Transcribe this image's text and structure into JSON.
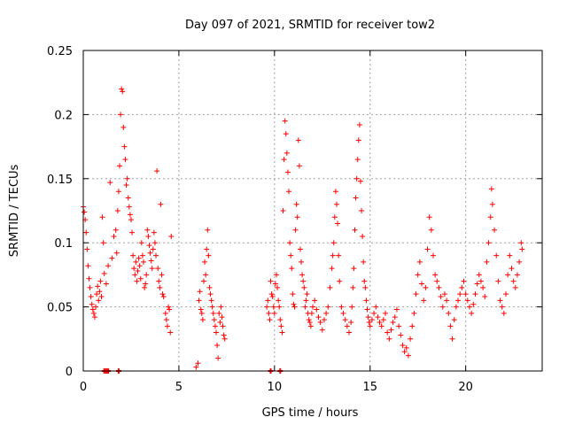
{
  "chart_data": {
    "type": "scatter",
    "title": "Day 097 of 2021, SRMTID for receiver tow2",
    "xlabel": "GPS time / hours",
    "ylabel": "SRMTID / TECUs",
    "xlim": [
      0,
      24
    ],
    "ylim": [
      0,
      0.25
    ],
    "xticks": [
      0,
      5,
      10,
      15,
      20
    ],
    "xtick_labels": [
      "0",
      "5",
      "10",
      "15",
      "20"
    ],
    "yticks": [
      0,
      0.05,
      0.1,
      0.15,
      0.2,
      0.25
    ],
    "ytick_labels": [
      "0",
      "0.05",
      "0.1",
      "0.15",
      "0.2",
      "0.25"
    ],
    "grid": true,
    "marker": "+",
    "series": [
      {
        "name": "SRMTID",
        "color": "#ff0000",
        "points": [
          [
            0.0,
            0.128
          ],
          [
            0.05,
            0.124
          ],
          [
            0.1,
            0.118
          ],
          [
            0.15,
            0.108
          ],
          [
            0.2,
            0.095
          ],
          [
            0.25,
            0.082
          ],
          [
            0.3,
            0.072
          ],
          [
            0.35,
            0.065
          ],
          [
            0.4,
            0.058
          ],
          [
            0.45,
            0.052
          ],
          [
            0.5,
            0.048
          ],
          [
            0.55,
            0.045
          ],
          [
            0.6,
            0.042
          ],
          [
            0.65,
            0.05
          ],
          [
            0.7,
            0.06
          ],
          [
            0.75,
            0.066
          ],
          [
            0.8,
            0.055
          ],
          [
            0.85,
            0.062
          ],
          [
            0.9,
            0.07
          ],
          [
            0.95,
            0.058
          ],
          [
            1.0,
            0.12
          ],
          [
            1.05,
            0.1
          ],
          [
            1.1,
            0.076
          ],
          [
            1.2,
            0.068
          ],
          [
            1.3,
            0.082
          ],
          [
            1.4,
            0.147
          ],
          [
            1.5,
            0.088
          ],
          [
            1.6,
            0.105
          ],
          [
            1.7,
            0.11
          ],
          [
            1.75,
            0.092
          ],
          [
            1.8,
            0.125
          ],
          [
            1.85,
            0.14
          ],
          [
            1.9,
            0.16
          ],
          [
            1.95,
            0.2
          ],
          [
            2.0,
            0.22
          ],
          [
            2.05,
            0.218
          ],
          [
            2.1,
            0.19
          ],
          [
            2.15,
            0.175
          ],
          [
            2.2,
            0.165
          ],
          [
            2.25,
            0.145
          ],
          [
            2.3,
            0.15
          ],
          [
            2.35,
            0.135
          ],
          [
            2.4,
            0.128
          ],
          [
            2.45,
            0.122
          ],
          [
            2.5,
            0.118
          ],
          [
            2.55,
            0.108
          ],
          [
            2.6,
            0.09
          ],
          [
            2.65,
            0.08
          ],
          [
            2.7,
            0.075
          ],
          [
            2.75,
            0.085
          ],
          [
            2.8,
            0.07
          ],
          [
            2.85,
            0.078
          ],
          [
            2.9,
            0.088
          ],
          [
            2.95,
            0.082
          ],
          [
            3.0,
            0.072
          ],
          [
            3.05,
            0.1
          ],
          [
            3.1,
            0.09
          ],
          [
            3.15,
            0.085
          ],
          [
            3.2,
            0.065
          ],
          [
            3.25,
            0.068
          ],
          [
            3.3,
            0.075
          ],
          [
            3.35,
            0.11
          ],
          [
            3.4,
            0.105
          ],
          [
            3.45,
            0.098
          ],
          [
            3.5,
            0.092
          ],
          [
            3.55,
            0.086
          ],
          [
            3.6,
            0.08
          ],
          [
            3.65,
            0.095
          ],
          [
            3.7,
            0.108
          ],
          [
            3.75,
            0.1
          ],
          [
            3.8,
            0.09
          ],
          [
            3.85,
            0.156
          ],
          [
            3.9,
            0.08
          ],
          [
            3.95,
            0.07
          ],
          [
            4.0,
            0.065
          ],
          [
            4.05,
            0.13
          ],
          [
            4.1,
            0.075
          ],
          [
            4.15,
            0.06
          ],
          [
            4.2,
            0.058
          ],
          [
            4.3,
            0.045
          ],
          [
            4.35,
            0.04
          ],
          [
            4.4,
            0.035
          ],
          [
            4.45,
            0.05
          ],
          [
            4.5,
            0.048
          ],
          [
            4.55,
            0.03
          ],
          [
            4.6,
            0.105
          ],
          [
            5.9,
            0.003
          ],
          [
            6.0,
            0.006
          ],
          [
            6.05,
            0.055
          ],
          [
            6.1,
            0.062
          ],
          [
            6.15,
            0.048
          ],
          [
            6.2,
            0.045
          ],
          [
            6.25,
            0.04
          ],
          [
            6.3,
            0.07
          ],
          [
            6.35,
            0.085
          ],
          [
            6.4,
            0.075
          ],
          [
            6.45,
            0.095
          ],
          [
            6.5,
            0.11
          ],
          [
            6.55,
            0.09
          ],
          [
            6.6,
            0.065
          ],
          [
            6.65,
            0.06
          ],
          [
            6.7,
            0.055
          ],
          [
            6.75,
            0.05
          ],
          [
            6.8,
            0.045
          ],
          [
            6.85,
            0.04
          ],
          [
            6.9,
            0.035
          ],
          [
            6.95,
            0.03
          ],
          [
            7.0,
            0.02
          ],
          [
            7.05,
            0.01
          ],
          [
            7.1,
            0.045
          ],
          [
            7.15,
            0.038
          ],
          [
            7.2,
            0.05
          ],
          [
            7.25,
            0.042
          ],
          [
            7.3,
            0.035
          ],
          [
            7.35,
            0.028
          ],
          [
            7.4,
            0.025
          ],
          [
            9.6,
            0.05
          ],
          [
            9.65,
            0.055
          ],
          [
            9.7,
            0.045
          ],
          [
            9.75,
            0.04
          ],
          [
            9.8,
            0.07
          ],
          [
            9.85,
            0.06
          ],
          [
            9.9,
            0.058
          ],
          [
            9.95,
            0.05
          ],
          [
            10.0,
            0.045
          ],
          [
            10.05,
            0.068
          ],
          [
            10.1,
            0.075
          ],
          [
            10.15,
            0.065
          ],
          [
            10.2,
            0.055
          ],
          [
            10.25,
            0.05
          ],
          [
            10.3,
            0.04
          ],
          [
            10.35,
            0.035
          ],
          [
            10.4,
            0.03
          ],
          [
            10.45,
            0.125
          ],
          [
            10.5,
            0.165
          ],
          [
            10.55,
            0.195
          ],
          [
            10.6,
            0.185
          ],
          [
            10.65,
            0.17
          ],
          [
            10.7,
            0.155
          ],
          [
            10.75,
            0.14
          ],
          [
            10.8,
            0.1
          ],
          [
            10.85,
            0.09
          ],
          [
            10.9,
            0.08
          ],
          [
            10.95,
            0.06
          ],
          [
            11.0,
            0.052
          ],
          [
            11.05,
            0.05
          ],
          [
            11.1,
            0.11
          ],
          [
            11.15,
            0.13
          ],
          [
            11.2,
            0.12
          ],
          [
            11.25,
            0.18
          ],
          [
            11.3,
            0.16
          ],
          [
            11.35,
            0.095
          ],
          [
            11.4,
            0.085
          ],
          [
            11.45,
            0.075
          ],
          [
            11.5,
            0.07
          ],
          [
            11.55,
            0.065
          ],
          [
            11.6,
            0.05
          ],
          [
            11.65,
            0.055
          ],
          [
            11.7,
            0.06
          ],
          [
            11.75,
            0.045
          ],
          [
            11.8,
            0.04
          ],
          [
            11.85,
            0.038
          ],
          [
            11.9,
            0.035
          ],
          [
            11.95,
            0.045
          ],
          [
            12.0,
            0.05
          ],
          [
            12.1,
            0.055
          ],
          [
            12.2,
            0.048
          ],
          [
            12.3,
            0.042
          ],
          [
            12.4,
            0.038
          ],
          [
            12.5,
            0.032
          ],
          [
            12.6,
            0.04
          ],
          [
            12.7,
            0.045
          ],
          [
            12.8,
            0.05
          ],
          [
            12.9,
            0.065
          ],
          [
            13.0,
            0.08
          ],
          [
            13.05,
            0.09
          ],
          [
            13.1,
            0.1
          ],
          [
            13.15,
            0.12
          ],
          [
            13.2,
            0.14
          ],
          [
            13.25,
            0.13
          ],
          [
            13.3,
            0.115
          ],
          [
            13.35,
            0.09
          ],
          [
            13.4,
            0.07
          ],
          [
            13.5,
            0.05
          ],
          [
            13.6,
            0.045
          ],
          [
            13.7,
            0.04
          ],
          [
            13.8,
            0.035
          ],
          [
            13.9,
            0.03
          ],
          [
            14.0,
            0.038
          ],
          [
            14.05,
            0.05
          ],
          [
            14.1,
            0.065
          ],
          [
            14.15,
            0.08
          ],
          [
            14.2,
            0.11
          ],
          [
            14.25,
            0.135
          ],
          [
            14.3,
            0.15
          ],
          [
            14.35,
            0.165
          ],
          [
            14.4,
            0.18
          ],
          [
            14.45,
            0.192
          ],
          [
            14.5,
            0.148
          ],
          [
            14.55,
            0.125
          ],
          [
            14.6,
            0.105
          ],
          [
            14.65,
            0.085
          ],
          [
            14.7,
            0.07
          ],
          [
            14.75,
            0.065
          ],
          [
            14.8,
            0.055
          ],
          [
            14.85,
            0.048
          ],
          [
            14.9,
            0.042
          ],
          [
            14.95,
            0.038
          ],
          [
            15.0,
            0.035
          ],
          [
            15.1,
            0.04
          ],
          [
            15.2,
            0.045
          ],
          [
            15.3,
            0.05
          ],
          [
            15.4,
            0.042
          ],
          [
            15.5,
            0.038
          ],
          [
            15.6,
            0.035
          ],
          [
            15.7,
            0.04
          ],
          [
            15.8,
            0.045
          ],
          [
            15.9,
            0.03
          ],
          [
            16.0,
            0.025
          ],
          [
            16.1,
            0.032
          ],
          [
            16.2,
            0.038
          ],
          [
            16.3,
            0.042
          ],
          [
            16.4,
            0.048
          ],
          [
            16.5,
            0.035
          ],
          [
            16.6,
            0.028
          ],
          [
            16.7,
            0.02
          ],
          [
            16.8,
            0.015
          ],
          [
            16.9,
            0.018
          ],
          [
            17.0,
            0.012
          ],
          [
            17.1,
            0.025
          ],
          [
            17.2,
            0.035
          ],
          [
            17.3,
            0.045
          ],
          [
            17.4,
            0.06
          ],
          [
            17.5,
            0.075
          ],
          [
            17.6,
            0.085
          ],
          [
            17.7,
            0.068
          ],
          [
            17.8,
            0.055
          ],
          [
            17.9,
            0.065
          ],
          [
            18.0,
            0.095
          ],
          [
            18.1,
            0.12
          ],
          [
            18.2,
            0.11
          ],
          [
            18.3,
            0.09
          ],
          [
            18.4,
            0.075
          ],
          [
            18.5,
            0.07
          ],
          [
            18.6,
            0.065
          ],
          [
            18.7,
            0.058
          ],
          [
            18.8,
            0.05
          ],
          [
            18.9,
            0.06
          ],
          [
            19.0,
            0.055
          ],
          [
            19.1,
            0.045
          ],
          [
            19.2,
            0.035
          ],
          [
            19.3,
            0.025
          ],
          [
            19.4,
            0.04
          ],
          [
            19.5,
            0.05
          ],
          [
            19.6,
            0.055
          ],
          [
            19.7,
            0.06
          ],
          [
            19.8,
            0.065
          ],
          [
            19.9,
            0.07
          ],
          [
            20.0,
            0.06
          ],
          [
            20.1,
            0.055
          ],
          [
            20.2,
            0.05
          ],
          [
            20.3,
            0.045
          ],
          [
            20.4,
            0.052
          ],
          [
            20.5,
            0.06
          ],
          [
            20.6,
            0.068
          ],
          [
            20.7,
            0.075
          ],
          [
            20.8,
            0.07
          ],
          [
            20.9,
            0.065
          ],
          [
            21.0,
            0.058
          ],
          [
            21.1,
            0.085
          ],
          [
            21.2,
            0.1
          ],
          [
            21.3,
            0.12
          ],
          [
            21.35,
            0.142
          ],
          [
            21.4,
            0.13
          ],
          [
            21.5,
            0.11
          ],
          [
            21.6,
            0.09
          ],
          [
            21.7,
            0.07
          ],
          [
            21.8,
            0.055
          ],
          [
            21.9,
            0.05
          ],
          [
            22.0,
            0.045
          ],
          [
            22.1,
            0.06
          ],
          [
            22.2,
            0.075
          ],
          [
            22.3,
            0.09
          ],
          [
            22.4,
            0.08
          ],
          [
            22.5,
            0.07
          ],
          [
            22.6,
            0.065
          ],
          [
            22.7,
            0.075
          ],
          [
            22.8,
            0.085
          ],
          [
            22.9,
            0.1
          ],
          [
            22.95,
            0.095
          ]
        ]
      }
    ]
  }
}
